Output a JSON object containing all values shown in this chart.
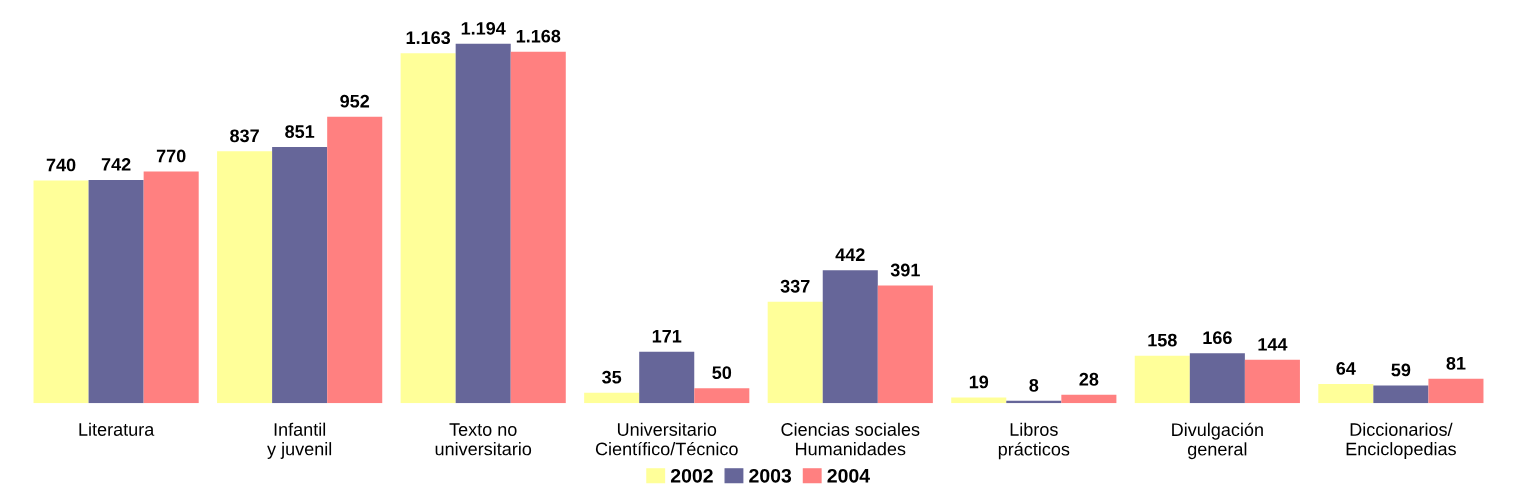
{
  "chart_data": {
    "type": "bar",
    "categories": [
      "Literatura",
      "Infantil\ny juvenil",
      "Texto no\nuniversitario",
      "Universitario\nCientífico/Técnico",
      "Ciencias sociales\nHumanidades",
      "Libros\nprácticos",
      "Divulgación\ngeneral",
      "Diccionarios/\nEnciclopedias"
    ],
    "series": [
      {
        "name": "2002",
        "color": "#ffff99",
        "values": [
          740,
          837,
          1163,
          35,
          337,
          19,
          158,
          64
        ],
        "value_labels": [
          "740",
          "837",
          "1.163",
          "35",
          "337",
          "19",
          "158",
          "64"
        ]
      },
      {
        "name": "2003",
        "color": "#666699",
        "values": [
          742,
          851,
          1194,
          171,
          442,
          8,
          166,
          59
        ],
        "value_labels": [
          "742",
          "851",
          "1.194",
          "171",
          "442",
          "8",
          "166",
          "59"
        ]
      },
      {
        "name": "2004",
        "color": "#ff8080",
        "values": [
          770,
          952,
          1168,
          50,
          391,
          28,
          144,
          81
        ],
        "value_labels": [
          "770",
          "952",
          "1.168",
          "50",
          "391",
          "28",
          "144",
          "81"
        ]
      }
    ],
    "legend": "bottom",
    "grid": false
  }
}
